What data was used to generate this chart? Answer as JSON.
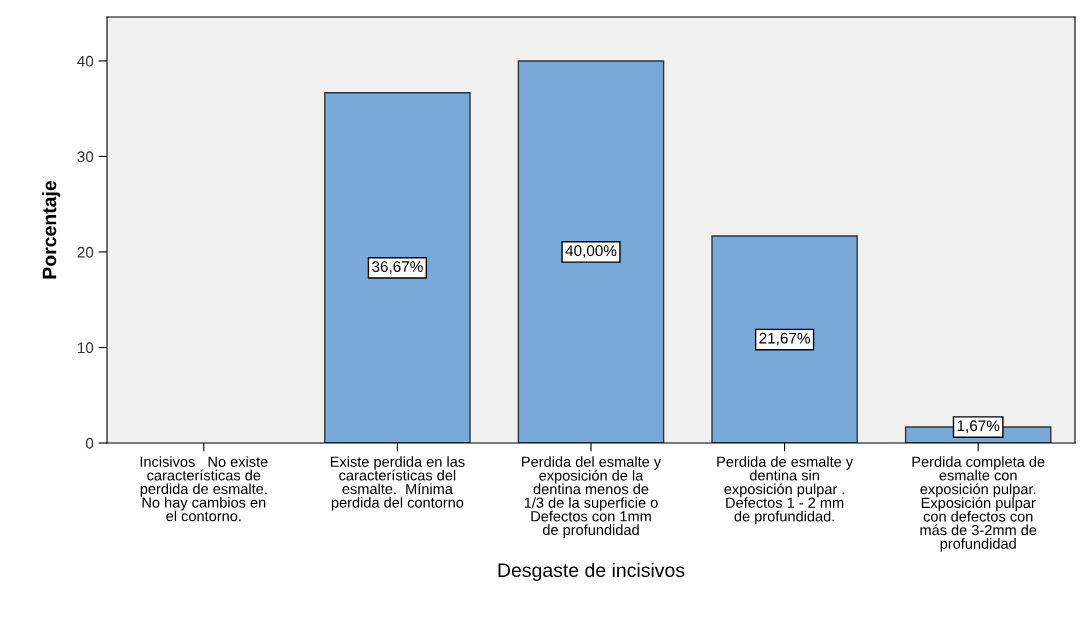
{
  "chart_data": {
    "type": "bar",
    "xlabel": "Desgaste de incisivos",
    "ylabel": "Porcentaje",
    "categories": [
      "Incisivos   No existe\ncaracterísticas de\nperdida de esmalte.\nNo hay cambios en\nel contorno.",
      "Existe perdida en las\ncaracterísticas del\nesmalte.  Mínima\nperdida del contorno",
      "Perdida del esmalte y\nexposición de la\ndentina menos de\n1/3 de la superficie o\nDefectos con 1mm\nde profundidad",
      "Perdida de esmalte y\ndentina sin\nexposición pulpar .\nDefectos 1 - 2 mm\nde profundidad.",
      "Perdida completa de\nesmalte con\nexposición pulpar.\nExposición pulpar\ncon defectos con\nmás de 3-2mm de\nprofundidad"
    ],
    "values": [
      0,
      36.67,
      40.0,
      21.67,
      1.67
    ],
    "value_labels": [
      null,
      "36,67%",
      "40,00%",
      "21,67%",
      "1,67%"
    ],
    "color": "#79a9d8",
    "ylim": [
      0,
      44.6
    ],
    "yticks": [
      0,
      10,
      20,
      30,
      40
    ],
    "grid": false,
    "legend": false
  }
}
